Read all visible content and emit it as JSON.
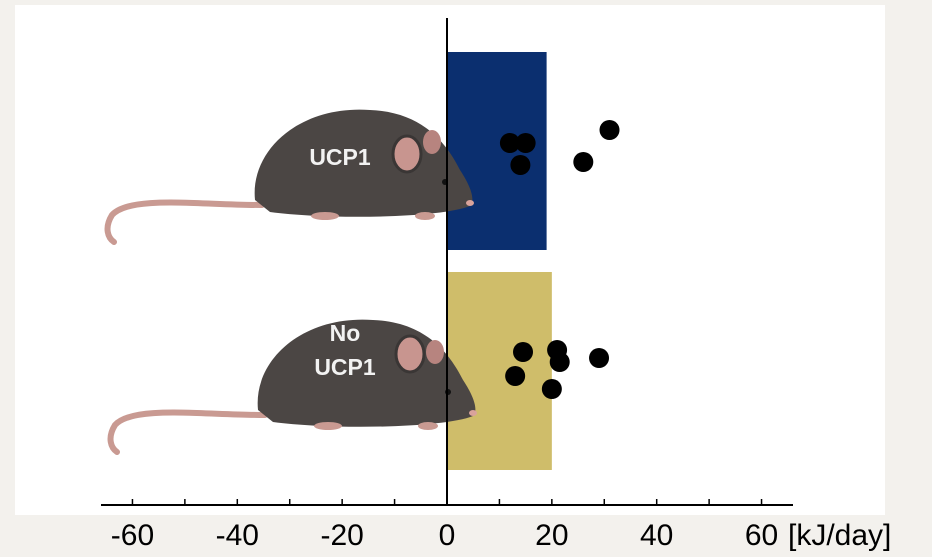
{
  "chart_data": {
    "type": "bar",
    "orientation": "horizontal",
    "categories": [
      "UCP1",
      "No UCP1"
    ],
    "values": [
      19,
      20
    ],
    "colors": [
      "#0b2f6f",
      "#cfbd6a"
    ],
    "points": [
      [
        12,
        15,
        14,
        26,
        31
      ],
      [
        14.5,
        21,
        21.5,
        29,
        13,
        20
      ]
    ],
    "point_color": "#000000",
    "xlim": [
      -66,
      66
    ],
    "xticks": [
      -60,
      -40,
      -20,
      0,
      20,
      40,
      60
    ],
    "xminor_ticks": [
      -50,
      -30,
      -10,
      10,
      30,
      50
    ],
    "xlabel": "[kJ/day]"
  }
}
